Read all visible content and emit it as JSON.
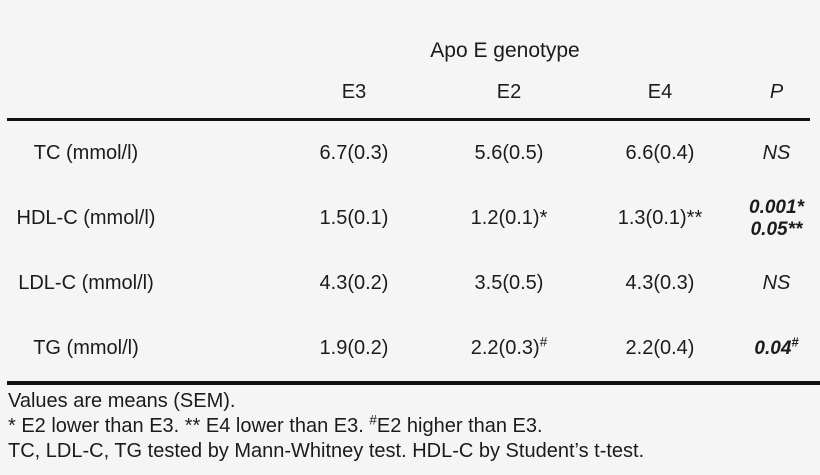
{
  "table": {
    "title": "Apo E genotype",
    "columns": {
      "e3": "E3",
      "e2": "E2",
      "e4": "E4",
      "p": "P"
    },
    "rows": [
      {
        "label": "TC (mmol/l)",
        "e3": "6.7(0.3)",
        "e2": "5.6(0.5)",
        "e2_sup": "",
        "e4": "6.6(0.4)",
        "p1": "NS",
        "p1_sup": "",
        "p2": "",
        "p2_sup": ""
      },
      {
        "label": "HDL-C (mmol/l)",
        "e3": "1.5(0.1)",
        "e2": "1.2(0.1)*",
        "e2_sup": "",
        "e4": "1.3(0.1)**",
        "p1": "0.001",
        "p1_sup": "*",
        "p2": "0.05",
        "p2_sup": "**"
      },
      {
        "label": "LDL-C (mmol/l)",
        "e3": "4.3(0.2)",
        "e2": "3.5(0.5)",
        "e2_sup": "",
        "e4": "4.3(0.3)",
        "p1": "NS",
        "p1_sup": "",
        "p2": "",
        "p2_sup": ""
      },
      {
        "label": "TG (mmol/l)",
        "e3": "1.9(0.2)",
        "e2": "2.2(0.3)",
        "e2_sup": "#",
        "e4": "2.2(0.4)",
        "p1": "0.04",
        "p1_sup": "#",
        "p2": "",
        "p2_sup": ""
      }
    ]
  },
  "footnotes": {
    "line1": "Values are means (SEM).",
    "line2_prefix": "* E2 lower than E3. ** E4 lower than E3. ",
    "line2_sup": "#",
    "line2_suffix": "E2 higher than E3.",
    "line3": "TC, LDL-C, TG tested by Mann-Whitney test. HDL-C by Student’s t-test."
  },
  "colors": {
    "background": "#f5f5f5",
    "text": "#1b1b1b",
    "rule": "#111111"
  }
}
